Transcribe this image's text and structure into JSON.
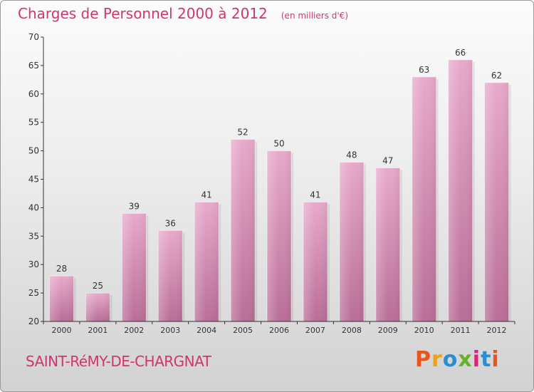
{
  "header": {
    "title": "Charges de Personnel 2000 à 2012",
    "subtitle": "(en milliers d'€)"
  },
  "footer": {
    "commune": "SAINT-RéMY-DE-CHARGNAT",
    "logo_text": "Proxiti"
  },
  "colors": {
    "title": "#d0356f",
    "bar_top": "#e8a9cb",
    "bar_bottom": "#b96e97",
    "axis": "#333333",
    "grid": "#d8d8d8",
    "logo": [
      "#e8561d",
      "#f0a312",
      "#2a8fd2",
      "#64b12a",
      "#d4267a",
      "#2a8fd2",
      "#e8561d"
    ]
  },
  "chart_data": {
    "type": "bar",
    "title": "Charges de Personnel 2000 à 2012",
    "subtitle": "(en milliers d'€)",
    "categories": [
      "2000",
      "2001",
      "2002",
      "2003",
      "2004",
      "2005",
      "2006",
      "2007",
      "2008",
      "2009",
      "2010",
      "2011",
      "2012"
    ],
    "values": [
      28,
      25,
      39,
      36,
      41,
      52,
      50,
      41,
      48,
      47,
      63,
      66,
      62
    ],
    "xlabel": "",
    "ylabel": "",
    "ylim": [
      20,
      70
    ],
    "yticks": [
      20,
      25,
      30,
      35,
      40,
      45,
      50,
      55,
      60,
      65,
      70
    ],
    "grid": false,
    "data_labels": true
  }
}
